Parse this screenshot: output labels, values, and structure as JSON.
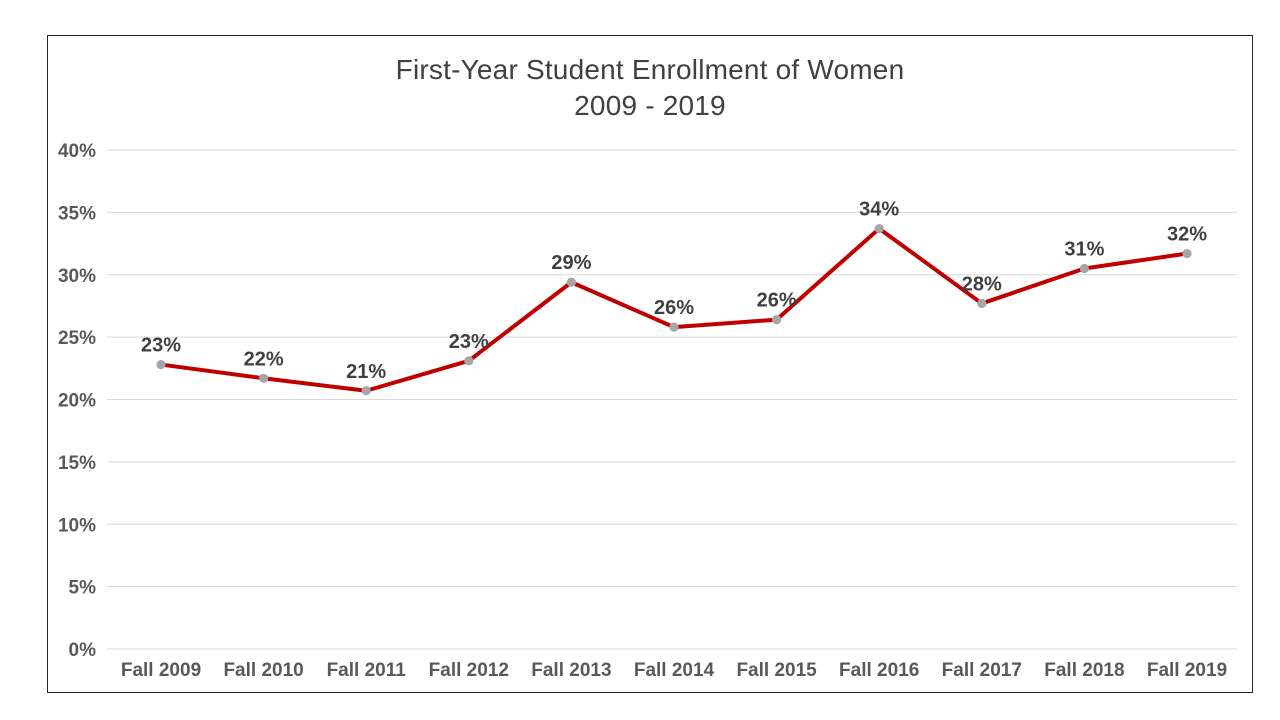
{
  "chart_data": {
    "type": "line",
    "title": "First-Year Student Enrollment of Women",
    "subtitle": "2009 - 2019",
    "categories": [
      "Fall 2009",
      "Fall 2010",
      "Fall 2011",
      "Fall 2012",
      "Fall 2013",
      "Fall 2014",
      "Fall 2015",
      "Fall 2016",
      "Fall 2017",
      "Fall 2018",
      "Fall 2019"
    ],
    "series": [
      {
        "name": "First-Year Student Enrollment of Women",
        "values": [
          22.8,
          21.7,
          20.7,
          23.1,
          29.4,
          25.8,
          26.4,
          33.7,
          27.7,
          30.5,
          31.7
        ],
        "point_labels": [
          "23%",
          "22%",
          "21%",
          "23%",
          "29%",
          "26%",
          "26%",
          "34%",
          "28%",
          "31%",
          "32%"
        ]
      }
    ],
    "xlabel": "",
    "ylabel": "",
    "ylim": [
      0,
      40
    ],
    "ytick_step": 5,
    "ytick_labels": [
      "0%",
      "5%",
      "10%",
      "15%",
      "20%",
      "25%",
      "30%",
      "35%",
      "40%"
    ],
    "grid": true,
    "legend_position": "none",
    "colors": {
      "line": "#c00000",
      "marker": "#a6a6a6",
      "gridline": "#d9d9d9",
      "title_text": "#404040",
      "tick_text": "#595959",
      "data_label_text": "#404040",
      "chart_border": "#262626",
      "background": "#ffffff"
    }
  }
}
